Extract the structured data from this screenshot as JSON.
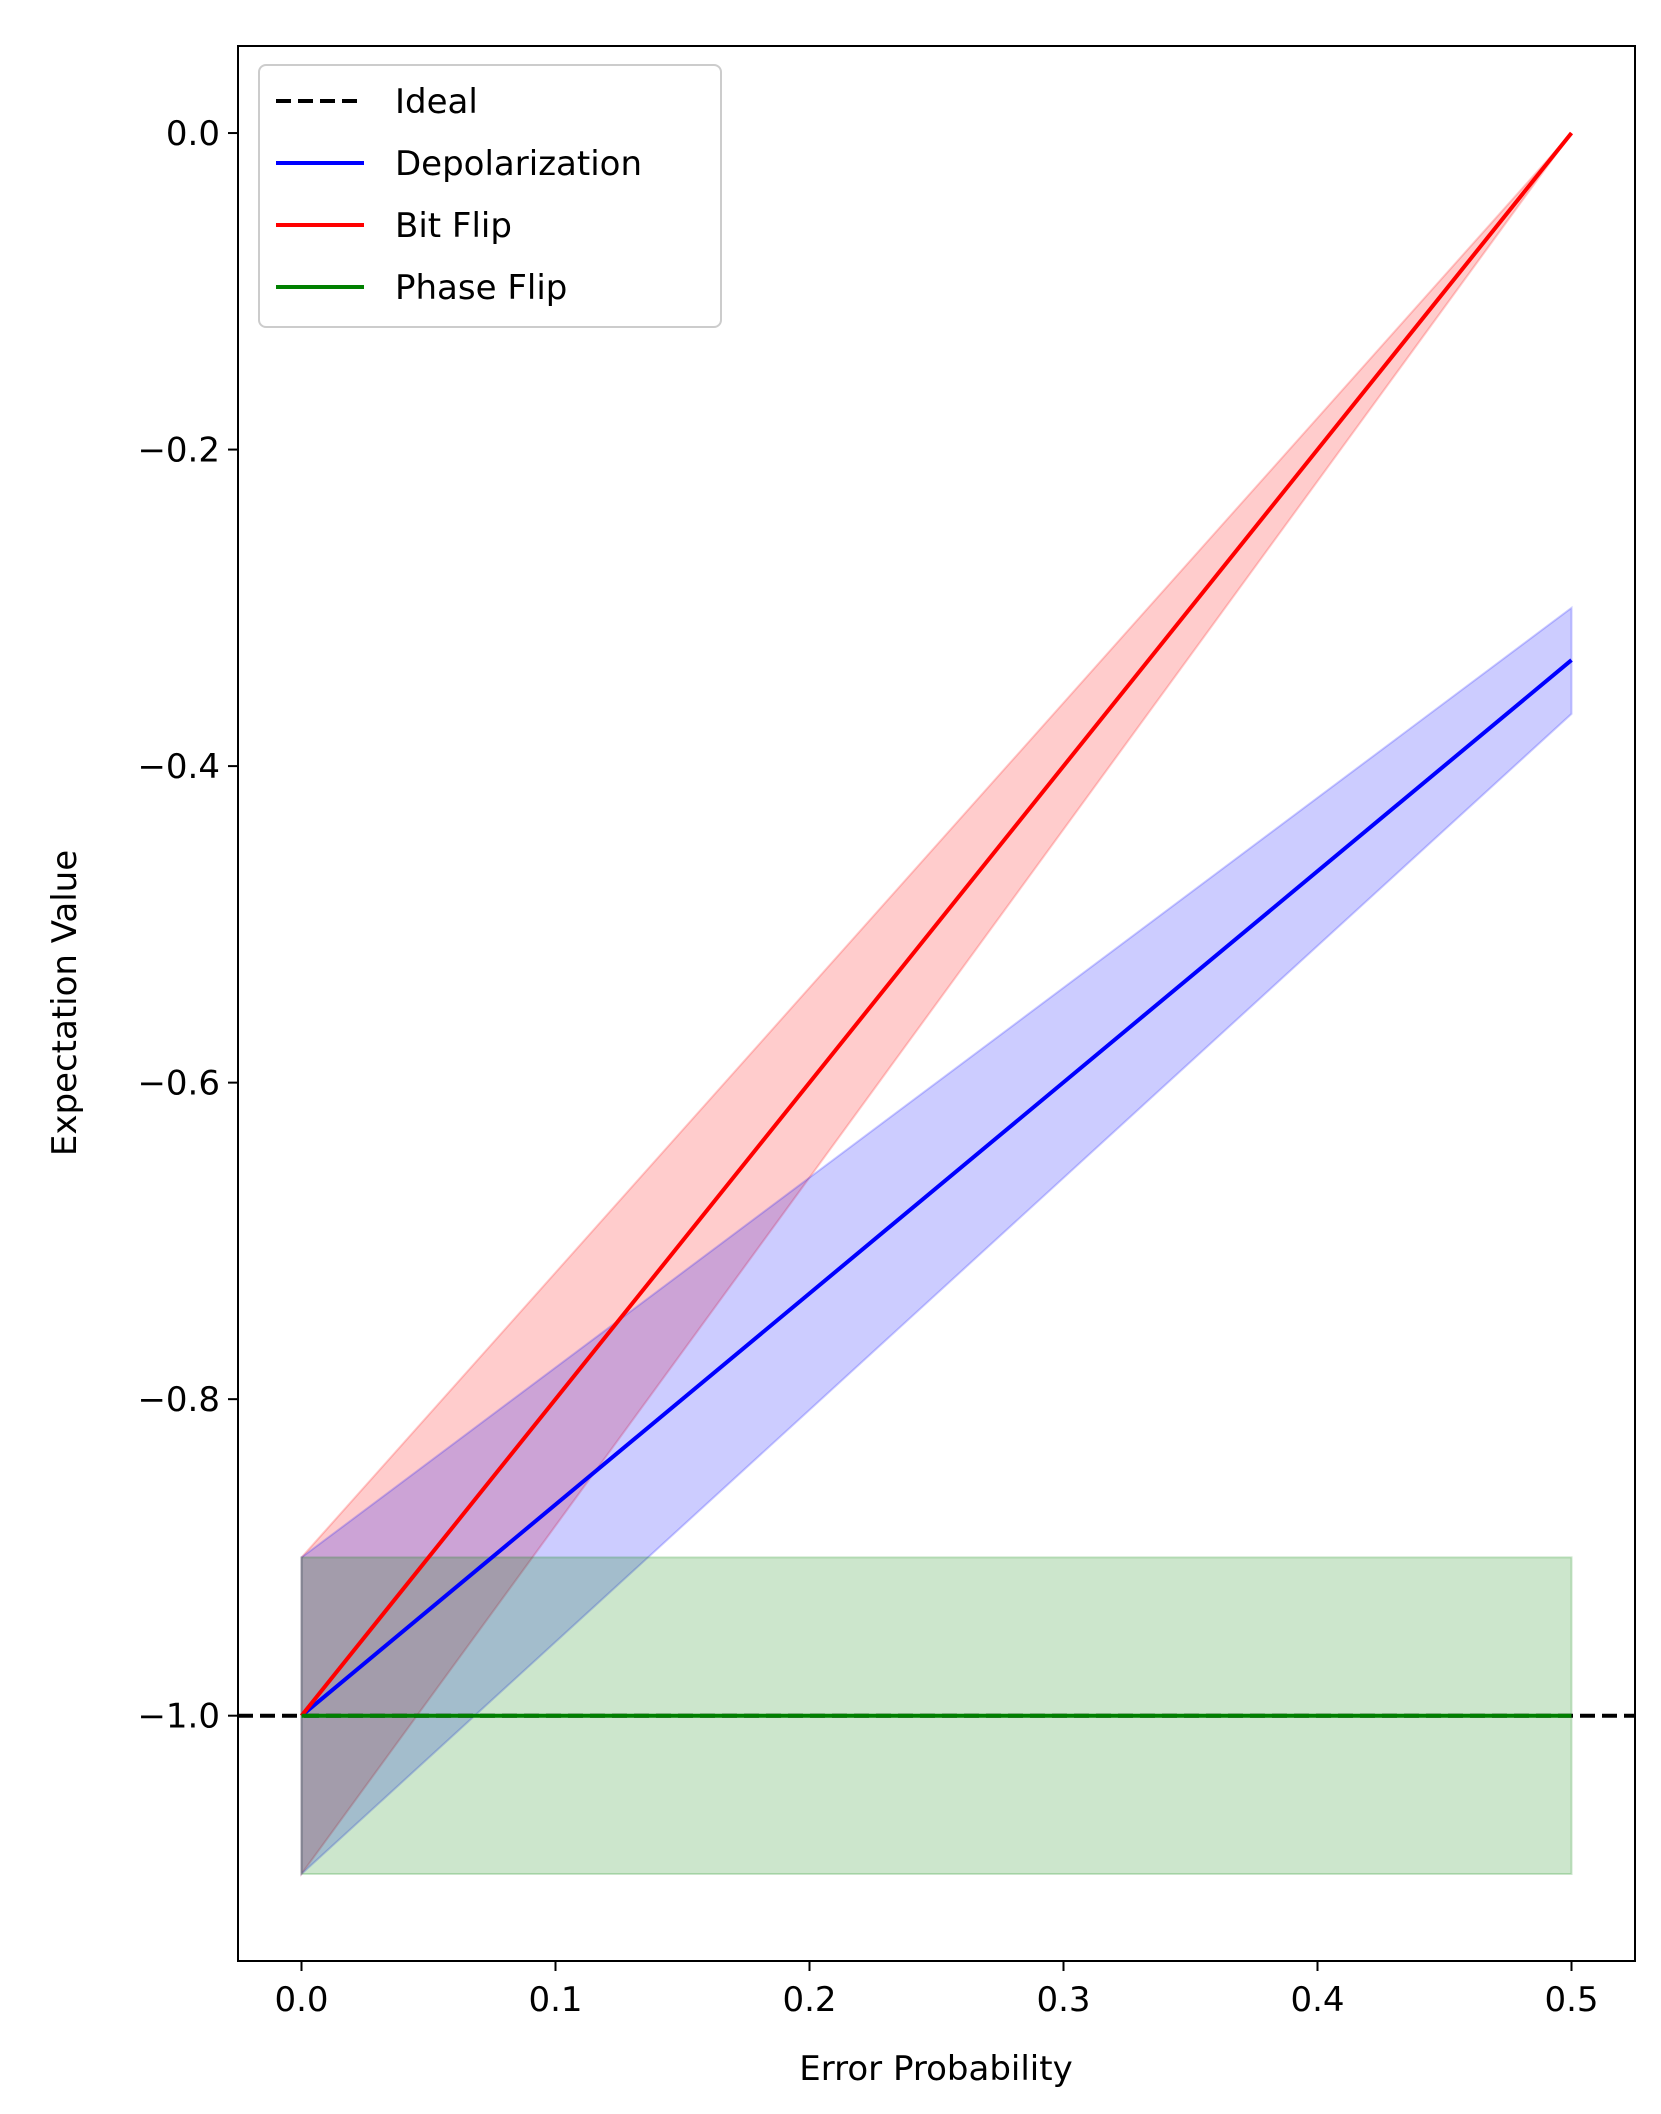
{
  "chart_data": {
    "type": "line",
    "xlabel": "Error Probability",
    "ylabel": "Expectation Value",
    "xlim": [
      -0.025,
      0.525
    ],
    "ylim": [
      -1.155,
      0.055
    ],
    "xticks": [
      0.0,
      0.1,
      0.2,
      0.3,
      0.4,
      0.5
    ],
    "xtick_labels": [
      "0.0",
      "0.1",
      "0.2",
      "0.3",
      "0.4",
      "0.5"
    ],
    "yticks": [
      0.0,
      -0.2,
      -0.4,
      -0.6,
      -0.8,
      -1.0
    ],
    "ytick_labels": [
      "0.0",
      "−0.2",
      "−0.4",
      "−0.6",
      "−0.8",
      "−1.0"
    ],
    "grid": false,
    "legend_position": "top-left",
    "x": [
      0.0,
      0.5
    ],
    "series": [
      {
        "name": "Ideal",
        "kind": "hline",
        "style": "dashed",
        "color": "#000000",
        "y": -1.0
      },
      {
        "name": "Depolarization",
        "style": "solid",
        "color": "#0000ff",
        "values": [
          -1.0,
          -0.333
        ],
        "band_upper": [
          -0.9,
          -0.3
        ],
        "band_lower": [
          -1.1,
          -0.367
        ],
        "band_color": "#0000ff"
      },
      {
        "name": "Bit Flip",
        "style": "solid",
        "color": "#ff0000",
        "values": [
          -1.0,
          0.0
        ],
        "band_upper": [
          -0.9,
          0.0
        ],
        "band_lower": [
          -1.1,
          0.0
        ],
        "band_color": "#ff0000"
      },
      {
        "name": "Phase Flip",
        "style": "solid",
        "color": "#008000",
        "values": [
          -1.0,
          -1.0
        ],
        "band_upper": [
          -0.9,
          -0.9
        ],
        "band_lower": [
          -1.1,
          -1.1
        ],
        "band_color": "#008000"
      }
    ]
  }
}
